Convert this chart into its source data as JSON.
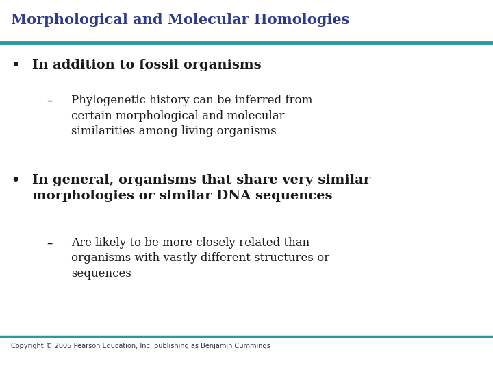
{
  "title": "Morphological and Molecular Homologies",
  "title_color": "#2E3B8B",
  "title_fontsize": 15,
  "line_color": "#2A9A9A",
  "background_color": "#FFFFFF",
  "bullet1": "In addition to fossil organisms",
  "sub1": "Phylogenetic history can be inferred from\ncertain morphological and molecular\nsimilarities among living organisms",
  "bullet2": "In general, organisms that share very similar\nmorphologies or similar DNA sequences",
  "sub2": "Are likely to be more closely related than\norganisms with vastly different structures or\nsequences",
  "footer": "Copyright © 2005 Pearson Education, Inc. publishing as Benjamin Cummings",
  "bullet_color": "#1a1a1a",
  "sub_color": "#1a1a1a",
  "bullet_fontsize": 14,
  "sub_fontsize": 12,
  "footer_fontsize": 7,
  "footer_color": "#333333"
}
